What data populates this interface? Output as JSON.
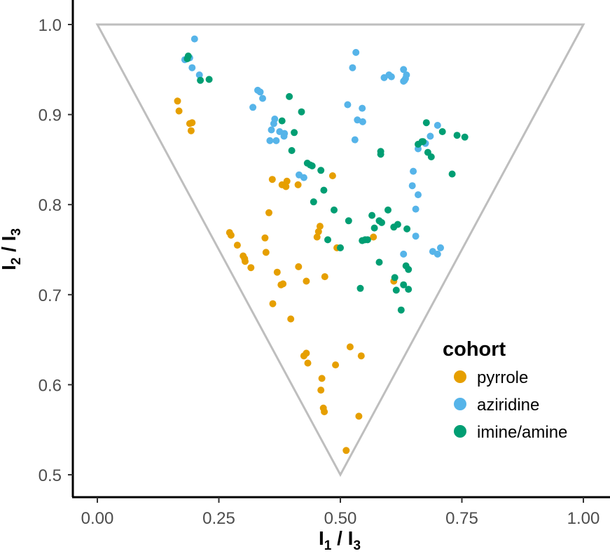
{
  "chart_data": {
    "type": "scatter",
    "title": "",
    "xlabel": {
      "main": "I",
      "sub1": "1",
      "sep": " / I",
      "sub2": "3"
    },
    "ylabel": {
      "main": "I",
      "sub1": "2",
      "sep": " / I",
      "sub2": "3"
    },
    "xlim": [
      -0.04,
      1.04
    ],
    "ylim": [
      0.478,
      1.022
    ],
    "x_ticks": [
      0,
      0.25,
      0.5,
      0.75,
      1.0
    ],
    "x_tick_labels": [
      "0.00",
      "0.25",
      "0.50",
      "0.75",
      "1.00"
    ],
    "y_ticks": [
      0.5,
      0.6,
      0.7,
      0.8,
      0.9,
      1.0
    ],
    "y_tick_labels": [
      "0.5",
      "0.6",
      "0.7",
      "0.8",
      "0.9",
      "1.0"
    ],
    "grid": false,
    "reference_triangle": [
      [
        0,
        1.0
      ],
      [
        1.0,
        1.0
      ],
      [
        0.5,
        0.5
      ]
    ],
    "legend": {
      "title": "cohort",
      "position": "right"
    },
    "series": [
      {
        "name": "pyrrole",
        "color": "#E69F00",
        "points": [
          [
            0.165,
            0.915
          ],
          [
            0.168,
            0.904
          ],
          [
            0.19,
            0.89
          ],
          [
            0.195,
            0.891
          ],
          [
            0.193,
            0.882
          ],
          [
            0.272,
            0.769
          ],
          [
            0.275,
            0.766
          ],
          [
            0.288,
            0.755
          ],
          [
            0.3,
            0.743
          ],
          [
            0.304,
            0.737
          ],
          [
            0.303,
            0.74
          ],
          [
            0.316,
            0.73
          ],
          [
            0.345,
            0.763
          ],
          [
            0.347,
            0.747
          ],
          [
            0.353,
            0.791
          ],
          [
            0.36,
            0.828
          ],
          [
            0.361,
            0.69
          ],
          [
            0.37,
            0.725
          ],
          [
            0.378,
            0.711
          ],
          [
            0.382,
            0.712
          ],
          [
            0.38,
            0.822
          ],
          [
            0.388,
            0.82
          ],
          [
            0.39,
            0.826
          ],
          [
            0.398,
            0.673
          ],
          [
            0.413,
            0.822
          ],
          [
            0.414,
            0.731
          ],
          [
            0.425,
            0.632
          ],
          [
            0.43,
            0.635
          ],
          [
            0.43,
            0.715
          ],
          [
            0.433,
            0.624
          ],
          [
            0.452,
            0.764
          ],
          [
            0.455,
            0.77
          ],
          [
            0.458,
            0.776
          ],
          [
            0.462,
            0.607
          ],
          [
            0.46,
            0.594
          ],
          [
            0.465,
            0.574
          ],
          [
            0.467,
            0.57
          ],
          [
            0.468,
            0.72
          ],
          [
            0.484,
            0.832
          ],
          [
            0.49,
            0.622
          ],
          [
            0.493,
            0.752
          ],
          [
            0.512,
            0.527
          ],
          [
            0.52,
            0.642
          ],
          [
            0.538,
            0.565
          ],
          [
            0.543,
            0.632
          ],
          [
            0.568,
            0.764
          ],
          [
            0.61,
            0.715
          ]
        ]
      },
      {
        "name": "aziridine",
        "color": "#56B4E9",
        "points": [
          [
            0.18,
            0.961
          ],
          [
            0.19,
            0.963
          ],
          [
            0.2,
            0.984
          ],
          [
            0.195,
            0.952
          ],
          [
            0.21,
            0.944
          ],
          [
            0.32,
            0.908
          ],
          [
            0.33,
            0.927
          ],
          [
            0.335,
            0.925
          ],
          [
            0.34,
            0.918
          ],
          [
            0.355,
            0.871
          ],
          [
            0.358,
            0.883
          ],
          [
            0.363,
            0.89
          ],
          [
            0.365,
            0.895
          ],
          [
            0.368,
            0.871
          ],
          [
            0.375,
            0.881
          ],
          [
            0.384,
            0.876
          ],
          [
            0.385,
            0.879
          ],
          [
            0.415,
            0.833
          ],
          [
            0.425,
            0.83
          ],
          [
            0.515,
            0.911
          ],
          [
            0.525,
            0.952
          ],
          [
            0.53,
            0.872
          ],
          [
            0.532,
            0.969
          ],
          [
            0.535,
            0.894
          ],
          [
            0.545,
            0.907
          ],
          [
            0.546,
            0.892
          ],
          [
            0.59,
            0.941
          ],
          [
            0.6,
            0.944
          ],
          [
            0.605,
            0.942
          ],
          [
            0.63,
            0.95
          ],
          [
            0.632,
            0.938
          ],
          [
            0.634,
            0.94
          ],
          [
            0.636,
            0.944
          ],
          [
            0.63,
            0.937
          ],
          [
            0.63,
            0.745
          ],
          [
            0.648,
            0.821
          ],
          [
            0.65,
            0.837
          ],
          [
            0.655,
            0.795
          ],
          [
            0.655,
            0.765
          ],
          [
            0.66,
            0.811
          ],
          [
            0.66,
            0.862
          ],
          [
            0.675,
            0.868
          ],
          [
            0.685,
            0.876
          ],
          [
            0.69,
            0.748
          ],
          [
            0.7,
            0.888
          ],
          [
            0.7,
            0.745
          ],
          [
            0.706,
            0.752
          ]
        ]
      },
      {
        "name": "imine/amine",
        "color": "#009E73",
        "points": [
          [
            0.185,
            0.962
          ],
          [
            0.187,
            0.965
          ],
          [
            0.212,
            0.938
          ],
          [
            0.23,
            0.939
          ],
          [
            0.38,
            0.893
          ],
          [
            0.395,
            0.92
          ],
          [
            0.4,
            0.86
          ],
          [
            0.405,
            0.88
          ],
          [
            0.42,
            0.903
          ],
          [
            0.432,
            0.846
          ],
          [
            0.438,
            0.844
          ],
          [
            0.442,
            0.843
          ],
          [
            0.445,
            0.803
          ],
          [
            0.46,
            0.838
          ],
          [
            0.466,
            0.816
          ],
          [
            0.474,
            0.761
          ],
          [
            0.487,
            0.794
          ],
          [
            0.5,
            0.752
          ],
          [
            0.517,
            0.782
          ],
          [
            0.541,
            0.707
          ],
          [
            0.545,
            0.76
          ],
          [
            0.551,
            0.761
          ],
          [
            0.556,
            0.761
          ],
          [
            0.565,
            0.788
          ],
          [
            0.57,
            0.774
          ],
          [
            0.58,
            0.736
          ],
          [
            0.58,
            0.782
          ],
          [
            0.583,
            0.859
          ],
          [
            0.583,
            0.856
          ],
          [
            0.585,
            0.78
          ],
          [
            0.598,
            0.794
          ],
          [
            0.61,
            0.775
          ],
          [
            0.612,
            0.719
          ],
          [
            0.615,
            0.705
          ],
          [
            0.618,
            0.778
          ],
          [
            0.625,
            0.683
          ],
          [
            0.63,
            0.711
          ],
          [
            0.635,
            0.732
          ],
          [
            0.637,
            0.773
          ],
          [
            0.64,
            0.728
          ],
          [
            0.64,
            0.706
          ],
          [
            0.66,
            0.867
          ],
          [
            0.668,
            0.87
          ],
          [
            0.67,
            0.87
          ],
          [
            0.677,
            0.891
          ],
          [
            0.68,
            0.858
          ],
          [
            0.687,
            0.853
          ],
          [
            0.71,
            0.881
          ],
          [
            0.73,
            0.834
          ],
          [
            0.74,
            0.877
          ],
          [
            0.756,
            0.875
          ]
        ]
      }
    ]
  }
}
